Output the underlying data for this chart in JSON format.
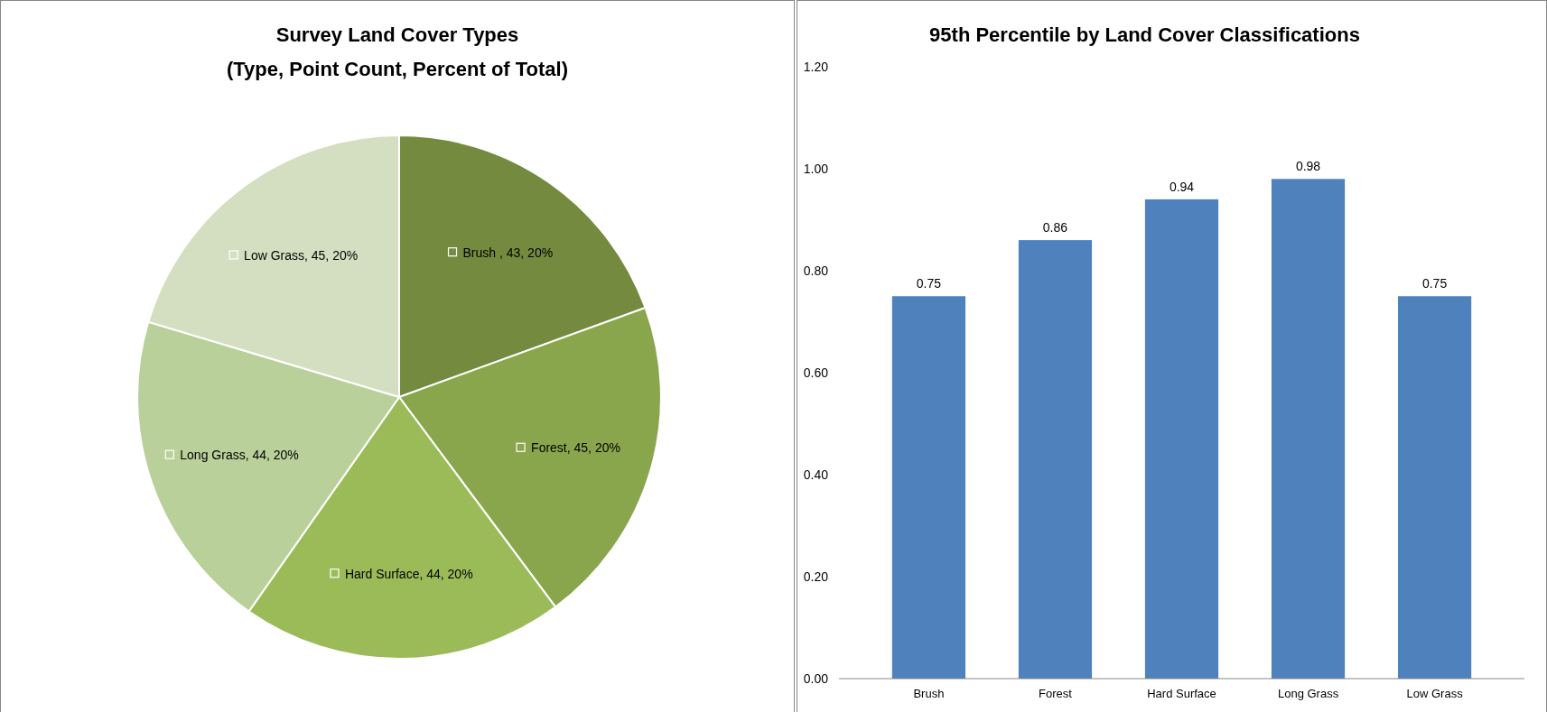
{
  "chart_data": [
    {
      "type": "pie",
      "title": "Survey Land Cover Types\n(Type, Point Count, Percent of Total)",
      "categories": [
        "Brush , 43, 20%",
        "Forest, 45, 20%",
        "Hard Surface, 44, 20%",
        "Long Grass, 44, 20%",
        "Low Grass, 45, 20%"
      ],
      "values": [
        43,
        45,
        44,
        44,
        45
      ],
      "legend": "center",
      "colors": [
        "#748b3f",
        "#8aa64c",
        "#9bbb59",
        "#bad09a",
        "#d3dfc0"
      ]
    },
    {
      "type": "bar",
      "title": "95th Percentile by Land Cover Classifications",
      "categories": [
        "Brush",
        "Forest",
        "Hard Surface",
        "Long Grass",
        "Low Grass"
      ],
      "values": [
        0.75,
        0.86,
        0.94,
        0.98,
        0.75
      ],
      "value_labels": [
        "0.75",
        "0.86",
        "0.94",
        "0.98",
        "0.75"
      ],
      "color": "#4f81bd",
      "ylim": [
        0,
        1.2
      ],
      "yticks": [
        {
          "value": 0,
          "label": "0.00"
        },
        {
          "value": 0.2,
          "label": "0.20"
        },
        {
          "value": 0.4,
          "label": "0.40"
        },
        {
          "value": 0.6,
          "label": "0.60"
        },
        {
          "value": 0.8,
          "label": "0.80"
        },
        {
          "value": 1,
          "label": "1.00"
        },
        {
          "value": 1.2,
          "label": "1.20"
        }
      ],
      "grid": false
    }
  ]
}
